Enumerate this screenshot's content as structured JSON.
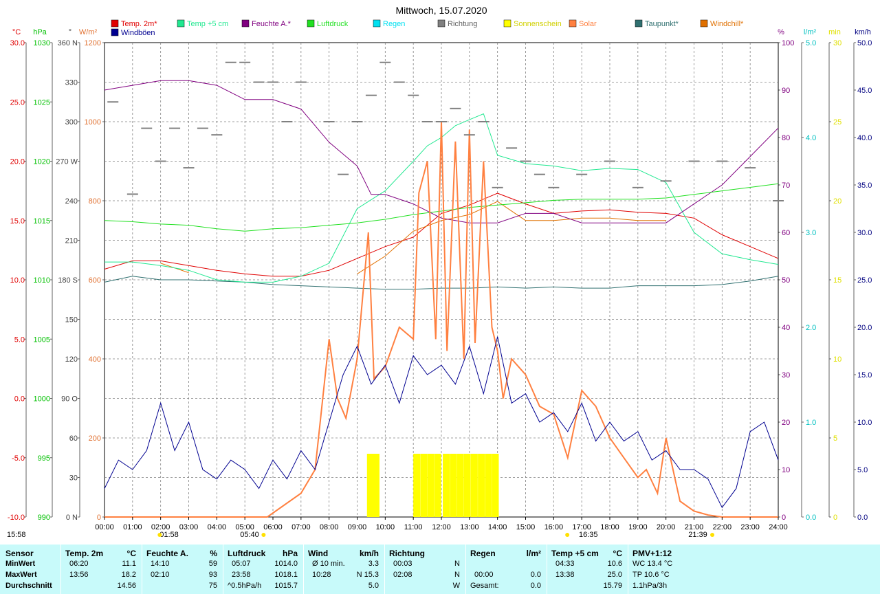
{
  "chart_data": {
    "type": "line",
    "title": "Mittwoch, 15.07.2020",
    "legend": [
      {
        "label": "Temp. 2m*",
        "color": "#e00000"
      },
      {
        "label": "Windböen",
        "color": "#000090"
      },
      {
        "label": "Temp +5 cm",
        "color": "#20e890"
      },
      {
        "label": "Feuchte A.*",
        "color": "#800080"
      },
      {
        "label": "Luftdruck",
        "color": "#20e020"
      },
      {
        "label": "Regen",
        "color": "#00e0f0"
      },
      {
        "label": "Richtung",
        "color": "#808080"
      },
      {
        "label": "Sonnenschein",
        "color": "#ffff00"
      },
      {
        "label": "Solar",
        "color": "#ff8040"
      },
      {
        "label": "Taupunkt*",
        "color": "#307070"
      },
      {
        "label": "Windchill*",
        "color": "#e07000"
      }
    ],
    "axes_left": [
      {
        "unit": "°C",
        "color": "#e00000",
        "ticks": [
          "30.0",
          "25.0",
          "20.0",
          "15.0",
          "10.0",
          "5.0",
          "0.0",
          "-5.0",
          "-10.0"
        ]
      },
      {
        "unit": "hPa",
        "color": "#00c000",
        "ticks": [
          "1030",
          "1025",
          "1020",
          "1015",
          "1010",
          "1005",
          "1000",
          "995",
          "990"
        ]
      },
      {
        "unit": "°",
        "color": "#404040",
        "ticks": [
          "360 N",
          "330",
          "300",
          "270 W",
          "240",
          "210",
          "180 S",
          "150",
          "120",
          "90 O",
          "60",
          "30",
          "0 N"
        ]
      },
      {
        "unit": "W/m²",
        "color": "#e07030",
        "ticks": [
          "1200",
          "1000",
          "800",
          "600",
          "400",
          "200",
          "0"
        ]
      }
    ],
    "axes_right": [
      {
        "unit": "%",
        "color": "#800080",
        "ticks": [
          "100",
          "90",
          "80",
          "70",
          "60",
          "50",
          "40",
          "30",
          "20",
          "10",
          "0"
        ]
      },
      {
        "unit": "l/m²",
        "color": "#00c0c0",
        "ticks": [
          "5.0",
          "4.0",
          "3.0",
          "2.0",
          "1.0",
          "0.0"
        ]
      },
      {
        "unit": "min",
        "color": "#e0e000",
        "ticks": [
          "30",
          "25",
          "20",
          "15",
          "10",
          "5",
          "0"
        ]
      },
      {
        "unit": "km/h",
        "color": "#000080",
        "ticks": [
          "50.0",
          "45.0",
          "40.0",
          "35.0",
          "30.0",
          "25.0",
          "20.0",
          "15.0",
          "10.0",
          "5.0",
          "0.0"
        ]
      }
    ],
    "x_ticks": [
      "00:00",
      "01:00",
      "02:00",
      "03:00",
      "04:00",
      "05:00",
      "06:00",
      "07:00",
      "08:00",
      "09:00",
      "10:00",
      "11:00",
      "12:00",
      "13:00",
      "14:00",
      "15:00",
      "16:00",
      "17:00",
      "18:00",
      "19:00",
      "20:00",
      "21:00",
      "22:00",
      "23:00",
      "24:00"
    ],
    "sun_markers": [
      "15:58",
      "01:58",
      "05:40",
      "16:35",
      "21:39"
    ],
    "series": [
      {
        "name": "Temp. 2m*",
        "unit": "°C",
        "x_hours": [
          0,
          1,
          2,
          3,
          4,
          5,
          6,
          7,
          8,
          9,
          10,
          11,
          12,
          13,
          14,
          15,
          16,
          17,
          18,
          19,
          20,
          21,
          22,
          23,
          24
        ],
        "values": [
          10.9,
          11.6,
          11.6,
          11.2,
          10.8,
          10.5,
          10.3,
          10.3,
          10.8,
          11.8,
          12.8,
          13.6,
          15.6,
          16.3,
          17.3,
          16.4,
          15.6,
          15.8,
          15.9,
          15.7,
          15.6,
          15.2,
          13.8,
          12.8,
          11.8
        ]
      },
      {
        "name": "Taupunkt*",
        "unit": "°C",
        "x_hours": [
          0,
          1,
          2,
          3,
          4,
          5,
          6,
          7,
          8,
          9,
          10,
          11,
          12,
          13,
          14,
          15,
          16,
          17,
          18,
          19,
          20,
          21,
          22,
          23,
          24
        ],
        "values": [
          9.8,
          10.3,
          10.0,
          10.0,
          9.9,
          9.8,
          9.6,
          9.5,
          9.4,
          9.3,
          9.2,
          9.2,
          9.3,
          9.3,
          9.4,
          9.3,
          9.4,
          9.3,
          9.3,
          9.5,
          9.5,
          9.5,
          9.6,
          9.9,
          10.3
        ]
      },
      {
        "name": "Windchill*",
        "unit": "°C",
        "x_hours": [
          0,
          1,
          2,
          2.5,
          3,
          3.5,
          4,
          5,
          6,
          7,
          8,
          9,
          10,
          11,
          12,
          13,
          14,
          15,
          16,
          17,
          18,
          19,
          20
        ],
        "values": [
          null,
          null,
          11.4,
          11.0,
          10.6,
          null,
          null,
          null,
          null,
          null,
          null,
          10.5,
          12.0,
          14.1,
          15.0,
          15.5,
          16.6,
          15.0,
          15.0,
          15.2,
          15.2,
          15.0,
          15.0
        ]
      },
      {
        "name": "Temp +5 cm",
        "unit": "°C",
        "x_hours": [
          0,
          1,
          2,
          3,
          4,
          5,
          6,
          7,
          8,
          9,
          10,
          11,
          11.5,
          12,
          12.5,
          13,
          13.5,
          14,
          15,
          16,
          17,
          18,
          19,
          20,
          21,
          22,
          23,
          24
        ],
        "values": [
          11.5,
          11.5,
          11.2,
          10.8,
          10.0,
          9.8,
          9.8,
          10.3,
          11.4,
          16.0,
          17.5,
          20.0,
          21.3,
          22.0,
          23.0,
          23.5,
          24.0,
          20.5,
          19.8,
          19.6,
          19.2,
          19.4,
          19.3,
          18.2,
          14.0,
          12.2,
          11.7,
          11.3
        ]
      },
      {
        "name": "Feuchte A.*",
        "unit": "%",
        "x_hours": [
          0,
          1,
          2,
          3,
          4,
          5,
          6,
          7,
          8,
          9,
          9.5,
          10,
          11,
          12,
          13,
          14,
          15,
          16,
          17,
          18,
          19,
          20,
          21,
          22,
          23,
          24
        ],
        "values": [
          90,
          91,
          92,
          92,
          91,
          88,
          88,
          86,
          79,
          74,
          68,
          68,
          66,
          63,
          62,
          62,
          64,
          64,
          62,
          62,
          62,
          62,
          66,
          70,
          76,
          82
        ]
      },
      {
        "name": "Luftdruck",
        "unit": "hPa",
        "x_hours": [
          0,
          1,
          2,
          3,
          4,
          5,
          6,
          7,
          8,
          9,
          10,
          11,
          12,
          13,
          14,
          15,
          16,
          17,
          18,
          19,
          20,
          21,
          22,
          23,
          24
        ],
        "values": [
          1015.0,
          1014.9,
          1014.7,
          1014.6,
          1014.3,
          1014.1,
          1014.3,
          1014.4,
          1014.6,
          1014.8,
          1015.1,
          1015.5,
          1015.8,
          1016.1,
          1016.3,
          1016.5,
          1016.7,
          1016.8,
          1016.8,
          1016.8,
          1016.9,
          1017.2,
          1017.5,
          1017.8,
          1018.1
        ]
      },
      {
        "name": "Solar",
        "unit": "W/m²",
        "x_hours": [
          0,
          5.8,
          7,
          7.5,
          8,
          8.3,
          8.6,
          9,
          9.4,
          9.6,
          10,
          10.5,
          11,
          11.2,
          11.5,
          11.8,
          12,
          12.2,
          12.5,
          12.8,
          13,
          13.2,
          13.5,
          13.8,
          14,
          14.2,
          14.5,
          15,
          15.5,
          16,
          16.5,
          17,
          17.5,
          18,
          18.5,
          19,
          19.3,
          19.7,
          20,
          20.5,
          21,
          21.5,
          22,
          24
        ],
        "values": [
          0,
          0,
          60,
          120,
          450,
          300,
          250,
          400,
          720,
          350,
          380,
          480,
          450,
          820,
          900,
          450,
          1000,
          420,
          950,
          400,
          980,
          440,
          900,
          480,
          420,
          300,
          400,
          360,
          280,
          260,
          150,
          320,
          280,
          200,
          150,
          100,
          120,
          60,
          200,
          40,
          15,
          5,
          0,
          0
        ]
      },
      {
        "name": "Windböen",
        "unit": "km/h",
        "x_hours": [
          0,
          0.5,
          1,
          1.5,
          2,
          2.5,
          3,
          3.5,
          4,
          4.5,
          5,
          5.5,
          6,
          6.5,
          7,
          7.5,
          8,
          8.5,
          9,
          9.5,
          10,
          10.5,
          11,
          11.5,
          12,
          12.5,
          13,
          13.5,
          14,
          14.5,
          15,
          15.5,
          16,
          16.5,
          17,
          17.5,
          18,
          18.5,
          19,
          19.5,
          20,
          20.5,
          21,
          21.5,
          22,
          22.5,
          23,
          23.5,
          24
        ],
        "values": [
          3,
          6,
          5,
          7,
          12,
          7,
          10,
          5,
          4,
          6,
          5,
          3,
          6,
          4,
          7,
          5,
          10,
          15,
          18,
          14,
          16,
          12,
          17,
          15,
          16,
          14,
          18,
          13,
          19,
          12,
          13,
          10,
          11,
          9,
          12,
          8,
          10,
          8,
          9,
          6,
          7,
          5,
          5,
          4,
          1,
          3,
          9,
          10,
          6
        ]
      },
      {
        "name": "Richtung",
        "unit": "°",
        "x_hours": [
          0.3,
          1,
          1.5,
          2,
          2.5,
          3,
          3.5,
          4,
          4.5,
          5,
          5.5,
          6,
          6.5,
          7,
          8,
          8.5,
          9,
          9.5,
          10,
          10.5,
          11,
          11.5,
          12,
          12.5,
          13,
          13.5,
          14,
          14.5,
          15,
          15.5,
          16,
          17,
          18,
          19,
          20,
          21,
          22,
          23,
          24
        ],
        "values": [
          315,
          245,
          295,
          270,
          295,
          265,
          295,
          290,
          345,
          345,
          330,
          330,
          300,
          330,
          300,
          260,
          300,
          320,
          345,
          330,
          320,
          300,
          300,
          310,
          290,
          300,
          250,
          280,
          270,
          260,
          250,
          260,
          270,
          250,
          255,
          270,
          270,
          265,
          240
        ]
      },
      {
        "name": "Sonnenschein",
        "unit": "min",
        "x_hours": [
          9.35,
          9.55,
          11.0,
          11.25,
          11.5,
          11.75,
          12.05,
          12.3,
          12.55,
          12.8,
          13.05,
          13.3,
          13.55,
          13.8
        ],
        "values": [
          4,
          4,
          4,
          4,
          4,
          4,
          4,
          4,
          4,
          4,
          4,
          4,
          4,
          4
        ]
      }
    ]
  },
  "summary": {
    "sensor": {
      "title": "Sensor",
      "rows": [
        "MinWert",
        "MaxWert",
        "Durchschnitt"
      ]
    },
    "temp2m": {
      "title": "Temp. 2m",
      "unit": "°C",
      "r1a": "06:20",
      "r1b": "11.1",
      "r2a": "13:56",
      "r2b": "18.2",
      "r3b": "14.56"
    },
    "feuchte": {
      "title": "Feuchte A.",
      "unit": "%",
      "r1a": "14:10",
      "r1b": "59",
      "r2a": "02:10",
      "r2b": "93",
      "r3b": "75"
    },
    "luftdruck": {
      "title": "Luftdruck",
      "unit": "hPa",
      "r1a": "05:07",
      "r1b": "1014.0",
      "r2a": "23:58",
      "r2b": "1018.1",
      "r3a": "^0.5hPa/h",
      "r3b": "1015.7"
    },
    "wind": {
      "title": "Wind",
      "unit": "km/h",
      "r1a": "Ø 10 min.",
      "r1b": "3.3",
      "r2a": "10:28",
      "r2b": "N 15.3",
      "r3b": "5.0"
    },
    "richtung": {
      "title": "Richtung",
      "r1a": "00:03",
      "r1b": "N",
      "r2a": "02:08",
      "r2b": "N",
      "r3b": "W"
    },
    "regen": {
      "title": "Regen",
      "unit": "l/m²",
      "r2a": "00:00",
      "r2b": "0.0",
      "r3a": "Gesamt:",
      "r3b": "0.0"
    },
    "temp5": {
      "title": "Temp +5 cm",
      "unit": "°C",
      "r1a": "04:33",
      "r1b": "10.6",
      "r2a": "13:38",
      "r2b": "25.0",
      "r3b": "15.79"
    },
    "pmv": {
      "title": "PMV+1:12",
      "r1": "WC 13.4 °C",
      "r2": "TP 10.6 °C",
      "r3": "1.1hPa/3h"
    }
  }
}
